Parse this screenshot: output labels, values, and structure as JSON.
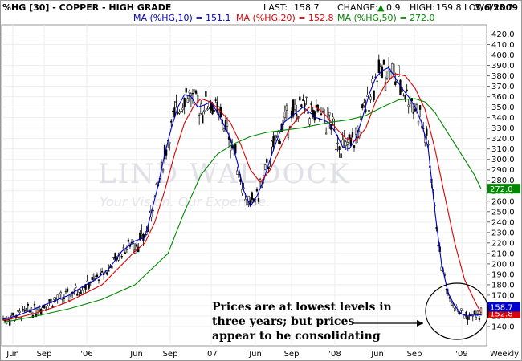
{
  "header": {
    "symbol_title": "%HG [30] - COPPER - HIGH GRADE",
    "last_label": "LAST:",
    "last_value": "158.7",
    "change_label": "CHANGE:",
    "change_value": "0.9",
    "high_label": "HIGH:",
    "high_value": "159.8",
    "low_label": "LOW:",
    "low_value": "158.7",
    "date": "3/6/2009"
  },
  "legend": [
    {
      "label": "MA (%HG,10) = 151.1",
      "color": "#0000cc"
    },
    {
      "label": "MA (%HG,20) = 152.8",
      "color": "#dd0000"
    },
    {
      "label": "MA (%HG,50) = 272.0",
      "color": "#008800"
    }
  ],
  "watermark": {
    "line1": "LIND WALDOCK",
    "line2": "Your Vision. Our Expertise."
  },
  "annotation": "Prices are at lowest levels in three years; but prices appear to be consolidating",
  "annotation_lines": [
    "Prices are at lowest levels in",
    "three years; but prices",
    "appear to be consolidating"
  ],
  "colors": {
    "price": "#000000",
    "ma10": "#0000cc",
    "ma20": "#dd0000",
    "ma50": "#008800",
    "frame": "#999999"
  },
  "chart_data": {
    "type": "line",
    "title": "%HG [30] - COPPER - HIGH GRADE",
    "periodicity": "Weekly",
    "x_tick_labels": [
      "Jun",
      "Sep",
      "'06",
      "Jun",
      "Sep",
      "'07",
      "Jun",
      "Sep",
      "'08",
      "Jun",
      "Sep",
      "'09",
      "Weekly"
    ],
    "y_tick_labels": [
      "140.0",
      "150.0",
      "160.0",
      "170.0",
      "180.0",
      "190.0",
      "200.0",
      "210.0",
      "220.0",
      "230.0",
      "240.0",
      "250.0",
      "260.0",
      "270.0",
      "280.0",
      "290.0",
      "300.0",
      "310.0",
      "320.0",
      "330.0",
      "340.0",
      "350.0",
      "360.0",
      "370.0",
      "380.0",
      "390.0",
      "400.0",
      "410.0",
      "420.0"
    ],
    "ylim": [
      130,
      425
    ],
    "value_markers": [
      {
        "value": 272.0,
        "label": "272.0",
        "color": "#008800"
      },
      {
        "value": 152.8,
        "label": "152.8",
        "color": "#dd0000"
      },
      {
        "value": 158.7,
        "label": "158.7",
        "color": "#0000cc"
      }
    ],
    "series": [
      {
        "name": "MA (%HG,10)",
        "color": "#0000cc",
        "points": [
          [
            0,
            147
          ],
          [
            8,
            150
          ],
          [
            16,
            155
          ],
          [
            24,
            160
          ],
          [
            32,
            165
          ],
          [
            40,
            170
          ],
          [
            48,
            178
          ],
          [
            56,
            185
          ],
          [
            64,
            195
          ],
          [
            72,
            212
          ],
          [
            80,
            222
          ],
          [
            86,
            225
          ],
          [
            90,
            250
          ],
          [
            94,
            275
          ],
          [
            98,
            305
          ],
          [
            102,
            330
          ],
          [
            106,
            350
          ],
          [
            110,
            362
          ],
          [
            114,
            360
          ],
          [
            118,
            350
          ],
          [
            122,
            352
          ],
          [
            126,
            355
          ],
          [
            130,
            345
          ],
          [
            134,
            333
          ],
          [
            138,
            320
          ],
          [
            142,
            298
          ],
          [
            146,
            270
          ],
          [
            150,
            255
          ],
          [
            154,
            265
          ],
          [
            158,
            280
          ],
          [
            162,
            300
          ],
          [
            166,
            318
          ],
          [
            170,
            335
          ],
          [
            174,
            340
          ],
          [
            178,
            345
          ],
          [
            182,
            350
          ],
          [
            186,
            345
          ],
          [
            190,
            340
          ],
          [
            194,
            338
          ],
          [
            198,
            335
          ],
          [
            202,
            325
          ],
          [
            206,
            312
          ],
          [
            210,
            310
          ],
          [
            214,
            320
          ],
          [
            218,
            340
          ],
          [
            222,
            362
          ],
          [
            226,
            378
          ],
          [
            230,
            385
          ],
          [
            234,
            388
          ],
          [
            238,
            378
          ],
          [
            242,
            368
          ],
          [
            246,
            360
          ],
          [
            250,
            350
          ],
          [
            254,
            335
          ],
          [
            258,
            310
          ],
          [
            262,
            250
          ],
          [
            266,
            200
          ],
          [
            270,
            172
          ],
          [
            274,
            160
          ],
          [
            278,
            152
          ],
          [
            282,
            150
          ],
          [
            286,
            151
          ],
          [
            290,
            151.1
          ]
        ]
      },
      {
        "name": "MA (%HG,20)",
        "color": "#dd0000",
        "points": [
          [
            0,
            146
          ],
          [
            10,
            149
          ],
          [
            20,
            153
          ],
          [
            30,
            158
          ],
          [
            40,
            164
          ],
          [
            50,
            172
          ],
          [
            60,
            180
          ],
          [
            70,
            196
          ],
          [
            80,
            212
          ],
          [
            86,
            220
          ],
          [
            92,
            240
          ],
          [
            98,
            270
          ],
          [
            104,
            305
          ],
          [
            110,
            335
          ],
          [
            116,
            352
          ],
          [
            120,
            358
          ],
          [
            126,
            355
          ],
          [
            132,
            346
          ],
          [
            138,
            335
          ],
          [
            144,
            315
          ],
          [
            150,
            290
          ],
          [
            156,
            278
          ],
          [
            162,
            290
          ],
          [
            168,
            310
          ],
          [
            174,
            330
          ],
          [
            180,
            342
          ],
          [
            186,
            350
          ],
          [
            190,
            350
          ],
          [
            196,
            342
          ],
          [
            202,
            330
          ],
          [
            208,
            320
          ],
          [
            214,
            318
          ],
          [
            220,
            330
          ],
          [
            226,
            355
          ],
          [
            232,
            372
          ],
          [
            238,
            382
          ],
          [
            244,
            380
          ],
          [
            250,
            368
          ],
          [
            256,
            348
          ],
          [
            262,
            310
          ],
          [
            268,
            265
          ],
          [
            274,
            220
          ],
          [
            280,
            185
          ],
          [
            286,
            165
          ],
          [
            290,
            152.8
          ]
        ]
      },
      {
        "name": "MA (%HG,50)",
        "color": "#008800",
        "points": [
          [
            0,
            144
          ],
          [
            20,
            150
          ],
          [
            40,
            157
          ],
          [
            60,
            166
          ],
          [
            80,
            180
          ],
          [
            100,
            210
          ],
          [
            110,
            250
          ],
          [
            120,
            285
          ],
          [
            130,
            305
          ],
          [
            140,
            315
          ],
          [
            150,
            322
          ],
          [
            160,
            326
          ],
          [
            170,
            328
          ],
          [
            180,
            330
          ],
          [
            190,
            333
          ],
          [
            200,
            336
          ],
          [
            210,
            338
          ],
          [
            220,
            342
          ],
          [
            230,
            350
          ],
          [
            240,
            357
          ],
          [
            250,
            358
          ],
          [
            256,
            355
          ],
          [
            262,
            345
          ],
          [
            268,
            330
          ],
          [
            274,
            315
          ],
          [
            280,
            300
          ],
          [
            286,
            285
          ],
          [
            290,
            272.0
          ]
        ]
      }
    ],
    "annotation_target": {
      "x": 266,
      "y": 152
    }
  }
}
